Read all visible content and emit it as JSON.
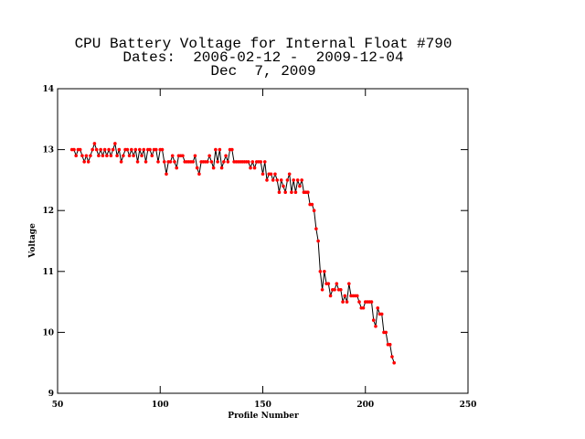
{
  "chart_data": {
    "type": "line",
    "title": [
      "CPU Battery Voltage for Internal Float #790",
      "Dates:  2006-02-12 -  2009-12-04",
      "Dec  7, 2009"
    ],
    "x_label": "Profile Number",
    "y_label": "Voltage",
    "xlim": [
      50,
      250
    ],
    "xticks": [
      50,
      100,
      150,
      200,
      250
    ],
    "ylim": [
      9,
      14
    ],
    "yticks": [
      9,
      10,
      11,
      12,
      13,
      14
    ],
    "line_color": "#000000",
    "marker_color": "#ff0000",
    "x": [
      57,
      58,
      59,
      60,
      61,
      62,
      63,
      64,
      65,
      66,
      67,
      68,
      69,
      70,
      71,
      72,
      73,
      74,
      75,
      76,
      77,
      78,
      79,
      80,
      81,
      82,
      83,
      84,
      85,
      86,
      87,
      88,
      89,
      90,
      91,
      92,
      93,
      94,
      95,
      96,
      97,
      98,
      99,
      100,
      101,
      102,
      103,
      104,
      105,
      106,
      107,
      108,
      109,
      110,
      111,
      112,
      113,
      114,
      115,
      116,
      117,
      118,
      119,
      120,
      121,
      122,
      123,
      124,
      125,
      126,
      127,
      128,
      129,
      130,
      131,
      132,
      133,
      134,
      135,
      136,
      137,
      138,
      139,
      140,
      141,
      142,
      143,
      144,
      145,
      146,
      147,
      148,
      149,
      150,
      151,
      152,
      153,
      154,
      155,
      156,
      157,
      158,
      159,
      160,
      161,
      162,
      163,
      164,
      165,
      166,
      167,
      168,
      169,
      170,
      171,
      172,
      173,
      174,
      175,
      176,
      177,
      178,
      179,
      180,
      181,
      182,
      183,
      184,
      185,
      186,
      187,
      188,
      189,
      190,
      191,
      192,
      193,
      194,
      195,
      196,
      197,
      198,
      199,
      200,
      201,
      202,
      203,
      204,
      205,
      206,
      207,
      208,
      209,
      210,
      211,
      212,
      213,
      214
    ],
    "values": [
      13.0,
      13.0,
      12.9,
      13.0,
      13.0,
      12.9,
      12.8,
      12.9,
      12.8,
      12.9,
      13.0,
      13.1,
      13.0,
      12.9,
      13.0,
      12.9,
      13.0,
      12.9,
      13.0,
      12.9,
      13.0,
      13.1,
      12.9,
      13.0,
      12.8,
      12.9,
      13.0,
      13.0,
      12.9,
      13.0,
      12.9,
      13.0,
      12.8,
      13.0,
      12.9,
      13.0,
      12.8,
      13.0,
      13.0,
      12.9,
      13.0,
      13.0,
      12.8,
      13.0,
      13.0,
      12.8,
      12.6,
      12.8,
      12.8,
      12.9,
      12.8,
      12.7,
      12.9,
      12.9,
      12.9,
      12.8,
      12.8,
      12.8,
      12.8,
      12.8,
      12.9,
      12.7,
      12.6,
      12.8,
      12.8,
      12.8,
      12.8,
      12.9,
      12.8,
      12.7,
      13.0,
      12.8,
      13.0,
      12.7,
      12.8,
      12.9,
      12.8,
      13.0,
      13.0,
      12.8,
      12.8,
      12.8,
      12.8,
      12.8,
      12.8,
      12.8,
      12.8,
      12.7,
      12.8,
      12.7,
      12.8,
      12.8,
      12.8,
      12.6,
      12.8,
      12.5,
      12.6,
      12.6,
      12.5,
      12.6,
      12.5,
      12.3,
      12.5,
      12.4,
      12.3,
      12.5,
      12.6,
      12.3,
      12.5,
      12.3,
      12.5,
      12.4,
      12.5,
      12.3,
      12.3,
      12.3,
      12.1,
      12.1,
      12.0,
      11.7,
      11.5,
      11.0,
      10.7,
      11.0,
      10.8,
      10.8,
      10.6,
      10.7,
      10.7,
      10.8,
      10.7,
      10.7,
      10.5,
      10.6,
      10.5,
      10.8,
      10.6,
      10.6,
      10.6,
      10.6,
      10.5,
      10.4,
      10.4,
      10.5,
      10.5,
      10.5,
      10.5,
      10.2,
      10.1,
      10.4,
      10.3,
      10.3,
      10.0,
      10.0,
      9.8,
      9.8,
      9.6,
      9.5
    ]
  }
}
